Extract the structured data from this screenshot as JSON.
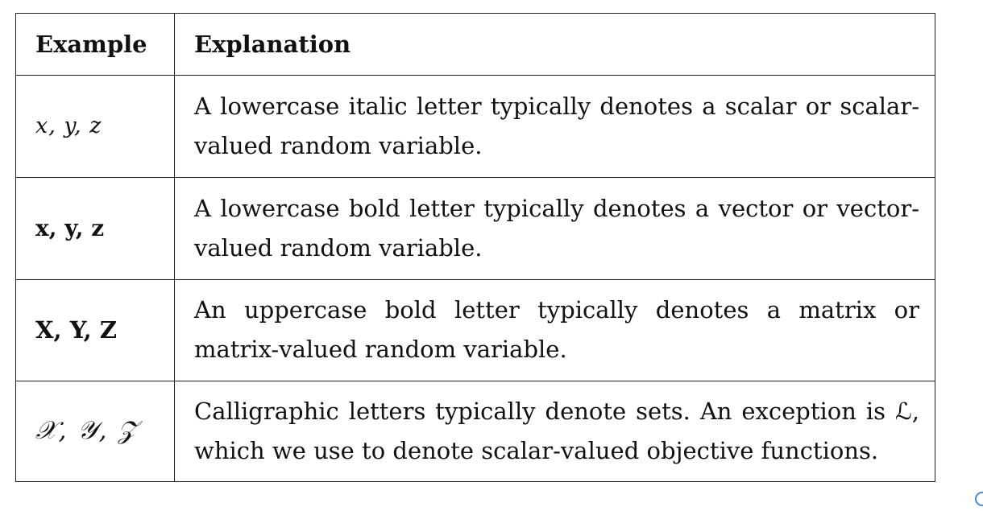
{
  "table": {
    "header": {
      "example": "Example",
      "explanation": "Explanation"
    },
    "rows": [
      {
        "example": "x, y, z",
        "explanation": "A lowercase italic letter typically denotes a scalar or scalar-valued random variable."
      },
      {
        "example": "x, y, z",
        "explanation": "A lowercase bold letter typically denotes a vector or vector-valued random variable."
      },
      {
        "example": "X, Y, Z",
        "explanation": "An uppercase bold letter typically denotes a matrix or matrix-valued random variable."
      },
      {
        "example": "𝒳, 𝒴, 𝒵",
        "explanation": "Calligraphic letters typically denote sets. An exception is ℒ, which we use to denote scalar-valued objective functions."
      }
    ]
  },
  "colors": {
    "border": "#222222",
    "text": "#111111",
    "icon_accent": "#4a8ad8"
  },
  "icons": {
    "corner": "circle-icon"
  }
}
